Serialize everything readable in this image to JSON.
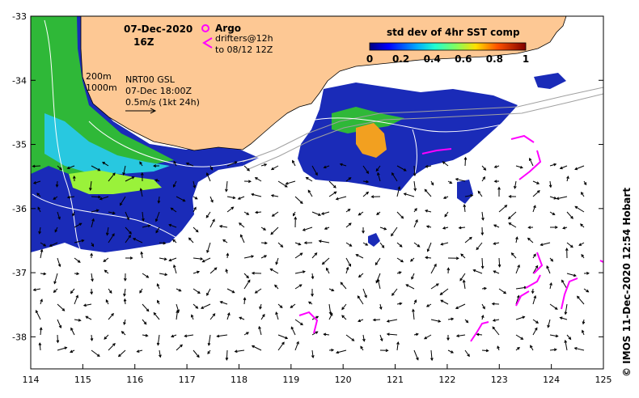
{
  "map": {
    "date": "07-Dec-2020",
    "time": "16Z",
    "lon_ticks": [
      "114",
      "115",
      "116",
      "117",
      "118",
      "119",
      "120",
      "121",
      "122",
      "123",
      "124",
      "125"
    ],
    "lat_ticks": [
      "-33",
      "-34",
      "-35",
      "-36",
      "-37",
      "-38"
    ],
    "lon_range": [
      114,
      125
    ],
    "lat_range": [
      -38.5,
      -33
    ],
    "colors": {
      "land": "#fdc894",
      "ocean": "#ffffff",
      "argo": "#ff00ff",
      "drifters": "#ff00ff",
      "contour": "#ffffff",
      "bathy": "#a0a0a0"
    }
  },
  "legend": {
    "argo_label": "Argo",
    "drifters_label": "drifters@12h",
    "drifters_sub": "to 08/12 12Z",
    "colorbar_title": "std dev of 4hr SST comp",
    "colorbar_ticks": [
      "0",
      "0.2",
      "0.4",
      "0.6",
      "0.8",
      "1"
    ]
  },
  "annotations": {
    "depth_200": "200m",
    "depth_1000": "1000m",
    "product": "NRT00 GSL",
    "product_time": "07-Dec 18:00Z",
    "scale": "0.5m/s (1kt 24h)"
  },
  "credit": "©  IMOS 11-Dec-2020 12:54 Hobart"
}
